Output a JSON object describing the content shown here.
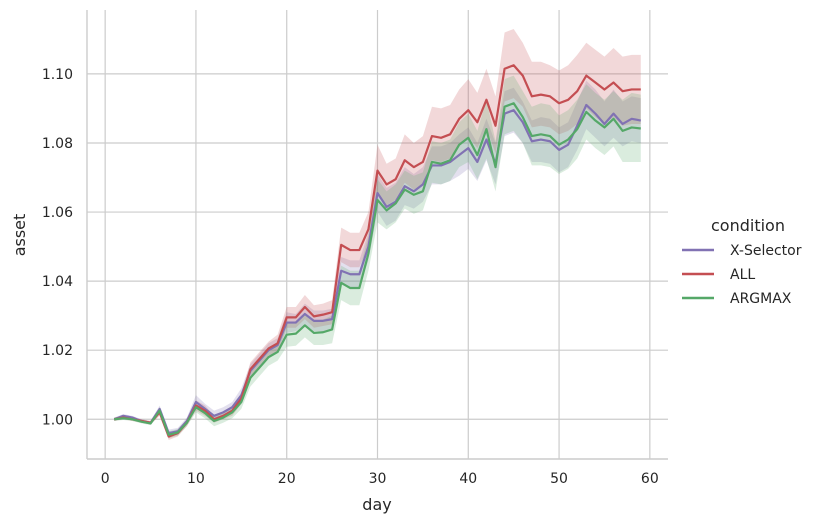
{
  "chart_data": {
    "type": "line",
    "xlabel": "day",
    "ylabel": "asset",
    "xlim": [
      -2,
      62
    ],
    "ylim": [
      0.9885,
      1.1185
    ],
    "xticks": [
      0,
      10,
      20,
      30,
      40,
      50,
      60
    ],
    "yticks": [
      1.0,
      1.02,
      1.04,
      1.06,
      1.08,
      1.1
    ],
    "ytick_labels": [
      "1.00",
      "1.02",
      "1.04",
      "1.06",
      "1.08",
      "1.10"
    ],
    "xtick_labels": [
      "0",
      "10",
      "20",
      "30",
      "40",
      "50",
      "60"
    ],
    "grid": true,
    "legend": {
      "title": "condition",
      "placement": "right"
    },
    "x": [
      1,
      2,
      3,
      4,
      5,
      6,
      7,
      8,
      9,
      10,
      11,
      12,
      13,
      14,
      15,
      16,
      17,
      18,
      19,
      20,
      21,
      22,
      23,
      24,
      25,
      26,
      27,
      28,
      29,
      30,
      31,
      32,
      33,
      34,
      35,
      36,
      37,
      38,
      39,
      40,
      41,
      42,
      43,
      44,
      45,
      46,
      47,
      48,
      49,
      50,
      51,
      52,
      53,
      54,
      55,
      56,
      57,
      58,
      59
    ],
    "series": [
      {
        "name": "X-Selector",
        "color": "#8172b3",
        "values": [
          1.0,
          1.001,
          1.0005,
          0.9995,
          0.999,
          1.003,
          0.996,
          0.9965,
          0.9995,
          1.005,
          1.003,
          1.001,
          1.002,
          1.0035,
          1.007,
          1.014,
          1.017,
          1.02,
          1.0215,
          1.028,
          1.028,
          1.0305,
          1.0285,
          1.0285,
          1.029,
          1.043,
          1.042,
          1.042,
          1.05,
          1.0655,
          1.0615,
          1.063,
          1.0675,
          1.066,
          1.068,
          1.0735,
          1.0735,
          1.0745,
          1.0765,
          1.0785,
          1.0745,
          1.081,
          1.074,
          1.0885,
          1.0895,
          1.086,
          1.0805,
          1.081,
          1.0805,
          1.078,
          1.0795,
          1.085,
          1.091,
          1.0885,
          1.0855,
          1.0885,
          1.0855,
          1.087,
          1.0865
        ],
        "ci_low": [
          0.9995,
          1.0005,
          1.0,
          0.999,
          0.9985,
          1.002,
          0.995,
          0.9955,
          0.9985,
          1.003,
          1.0015,
          0.9995,
          1.0005,
          1.002,
          1.005,
          1.012,
          1.015,
          1.018,
          1.0195,
          1.025,
          1.0255,
          1.0275,
          1.0255,
          1.0255,
          1.026,
          1.039,
          1.038,
          1.038,
          1.046,
          1.06,
          1.056,
          1.0575,
          1.062,
          1.061,
          1.063,
          1.068,
          1.068,
          1.069,
          1.0705,
          1.0725,
          1.069,
          1.075,
          1.068,
          1.082,
          1.083,
          1.08,
          1.0745,
          1.0745,
          1.074,
          1.0715,
          1.073,
          1.078,
          1.084,
          1.0815,
          1.079,
          1.0815,
          1.079,
          1.0805,
          1.08
        ],
        "ci_high": [
          1.0005,
          1.0015,
          1.001,
          1.0,
          0.9995,
          1.004,
          0.997,
          0.9975,
          1.0005,
          1.007,
          1.0045,
          1.0025,
          1.0035,
          1.005,
          1.009,
          1.016,
          1.019,
          1.022,
          1.0235,
          1.031,
          1.0305,
          1.0335,
          1.0315,
          1.0315,
          1.032,
          1.047,
          1.046,
          1.046,
          1.054,
          1.071,
          1.067,
          1.0685,
          1.073,
          1.071,
          1.073,
          1.079,
          1.079,
          1.08,
          1.0825,
          1.0845,
          1.08,
          1.087,
          1.08,
          1.095,
          1.096,
          1.092,
          1.0865,
          1.0875,
          1.087,
          1.0845,
          1.086,
          1.092,
          1.098,
          1.0955,
          1.092,
          1.0955,
          1.092,
          1.0935,
          1.093
        ]
      },
      {
        "name": "ALL",
        "color": "#c44e52",
        "values": [
          1.0,
          1.0005,
          1.0,
          0.9995,
          0.999,
          1.002,
          0.995,
          0.996,
          0.999,
          1.004,
          1.0025,
          1.0,
          1.001,
          1.0025,
          1.006,
          1.0145,
          1.0175,
          1.0205,
          1.022,
          1.0295,
          1.0295,
          1.0325,
          1.0298,
          1.0303,
          1.031,
          1.0505,
          1.049,
          1.049,
          1.055,
          1.072,
          1.068,
          1.0695,
          1.075,
          1.073,
          1.0745,
          1.082,
          1.0815,
          1.0825,
          1.087,
          1.0895,
          1.086,
          1.0925,
          1.085,
          1.1015,
          1.1025,
          1.0995,
          1.0935,
          1.094,
          1.0935,
          1.0915,
          1.0925,
          1.095,
          1.0995,
          1.0975,
          1.0955,
          1.0975,
          1.095,
          1.0955,
          1.0955
        ],
        "ci_low": [
          0.9995,
          1.0,
          0.9995,
          0.999,
          0.9985,
          1.001,
          0.994,
          0.995,
          0.998,
          1.0025,
          1.001,
          0.999,
          1.0,
          1.001,
          1.0045,
          1.0125,
          1.0155,
          1.0185,
          1.0195,
          1.0265,
          1.0265,
          1.029,
          1.0265,
          1.027,
          1.0275,
          1.0455,
          1.044,
          1.044,
          1.05,
          1.0655,
          1.062,
          1.0635,
          1.0685,
          1.0665,
          1.068,
          1.075,
          1.0745,
          1.0755,
          1.0795,
          1.082,
          1.0785,
          1.0845,
          1.077,
          1.092,
          1.093,
          1.0905,
          1.0845,
          1.085,
          1.0845,
          1.0825,
          1.0835,
          1.0855,
          1.09,
          1.0875,
          1.0855,
          1.0875,
          1.085,
          1.0855,
          1.0855
        ],
        "ci_high": [
          1.0005,
          1.001,
          1.0005,
          1.0,
          0.9995,
          1.003,
          0.996,
          0.997,
          1.0,
          1.0055,
          1.004,
          1.001,
          1.002,
          1.004,
          1.0075,
          1.0165,
          1.0195,
          1.0225,
          1.0245,
          1.0325,
          1.0325,
          1.036,
          1.033,
          1.0335,
          1.0345,
          1.0555,
          1.054,
          1.054,
          1.06,
          1.0795,
          1.074,
          1.0755,
          1.0825,
          1.08,
          1.082,
          1.0905,
          1.09,
          1.091,
          1.0955,
          1.0985,
          1.0945,
          1.1015,
          1.0935,
          1.112,
          1.113,
          1.109,
          1.1035,
          1.1035,
          1.1025,
          1.101,
          1.1025,
          1.1055,
          1.109,
          1.107,
          1.105,
          1.1075,
          1.105,
          1.1055,
          1.1055
        ]
      },
      {
        "name": "ARGMAX",
        "color": "#55a868",
        "values": [
          1.0,
          1.0003,
          1.0,
          0.9993,
          0.9988,
          1.0025,
          0.9955,
          0.9962,
          0.999,
          1.0035,
          1.0018,
          0.9995,
          1.0005,
          1.002,
          1.005,
          1.012,
          1.015,
          1.018,
          1.0195,
          1.0245,
          1.0248,
          1.0272,
          1.025,
          1.0252,
          1.026,
          1.0395,
          1.038,
          1.038,
          1.048,
          1.0635,
          1.0605,
          1.0625,
          1.0665,
          1.065,
          1.066,
          1.0745,
          1.074,
          1.075,
          1.0795,
          1.0815,
          1.0765,
          1.084,
          1.073,
          1.0905,
          1.0915,
          1.0875,
          1.082,
          1.0825,
          1.082,
          1.0795,
          1.081,
          1.084,
          1.089,
          1.0865,
          1.0845,
          1.087,
          1.0835,
          1.0845,
          1.0842
        ],
        "ci_low": [
          0.9995,
          0.9998,
          0.9995,
          0.9988,
          0.9983,
          1.0015,
          0.9945,
          0.9952,
          0.998,
          1.002,
          1.0003,
          0.998,
          0.999,
          1.0003,
          1.003,
          1.0095,
          1.0125,
          1.0155,
          1.017,
          1.021,
          1.0213,
          1.0237,
          1.0215,
          1.0215,
          1.022,
          1.0345,
          1.033,
          1.033,
          1.043,
          1.057,
          1.055,
          1.057,
          1.061,
          1.0595,
          1.0605,
          1.0685,
          1.068,
          1.069,
          1.073,
          1.0745,
          1.0695,
          1.0755,
          1.066,
          1.0825,
          1.0835,
          1.08,
          1.0735,
          1.0735,
          1.073,
          1.071,
          1.0725,
          1.0755,
          1.081,
          1.0785,
          1.0765,
          1.079,
          1.0745,
          1.0745,
          1.0745
        ],
        "ci_high": [
          1.0005,
          1.0008,
          1.0005,
          0.9998,
          0.9993,
          1.0035,
          0.9965,
          0.9972,
          1.0,
          1.005,
          1.0033,
          1.001,
          1.002,
          1.0037,
          1.007,
          1.0145,
          1.0175,
          1.0205,
          1.022,
          1.028,
          1.0283,
          1.0307,
          1.0285,
          1.0289,
          1.03,
          1.0445,
          1.043,
          1.043,
          1.053,
          1.0695,
          1.066,
          1.068,
          1.072,
          1.0705,
          1.0715,
          1.0805,
          1.08,
          1.081,
          1.086,
          1.0885,
          1.0835,
          1.0925,
          1.0805,
          1.0985,
          1.0995,
          1.095,
          1.0905,
          1.0915,
          1.091,
          1.088,
          1.0895,
          1.0925,
          1.097,
          1.0945,
          1.0925,
          1.095,
          1.0925,
          1.0945,
          1.094
        ]
      }
    ]
  }
}
